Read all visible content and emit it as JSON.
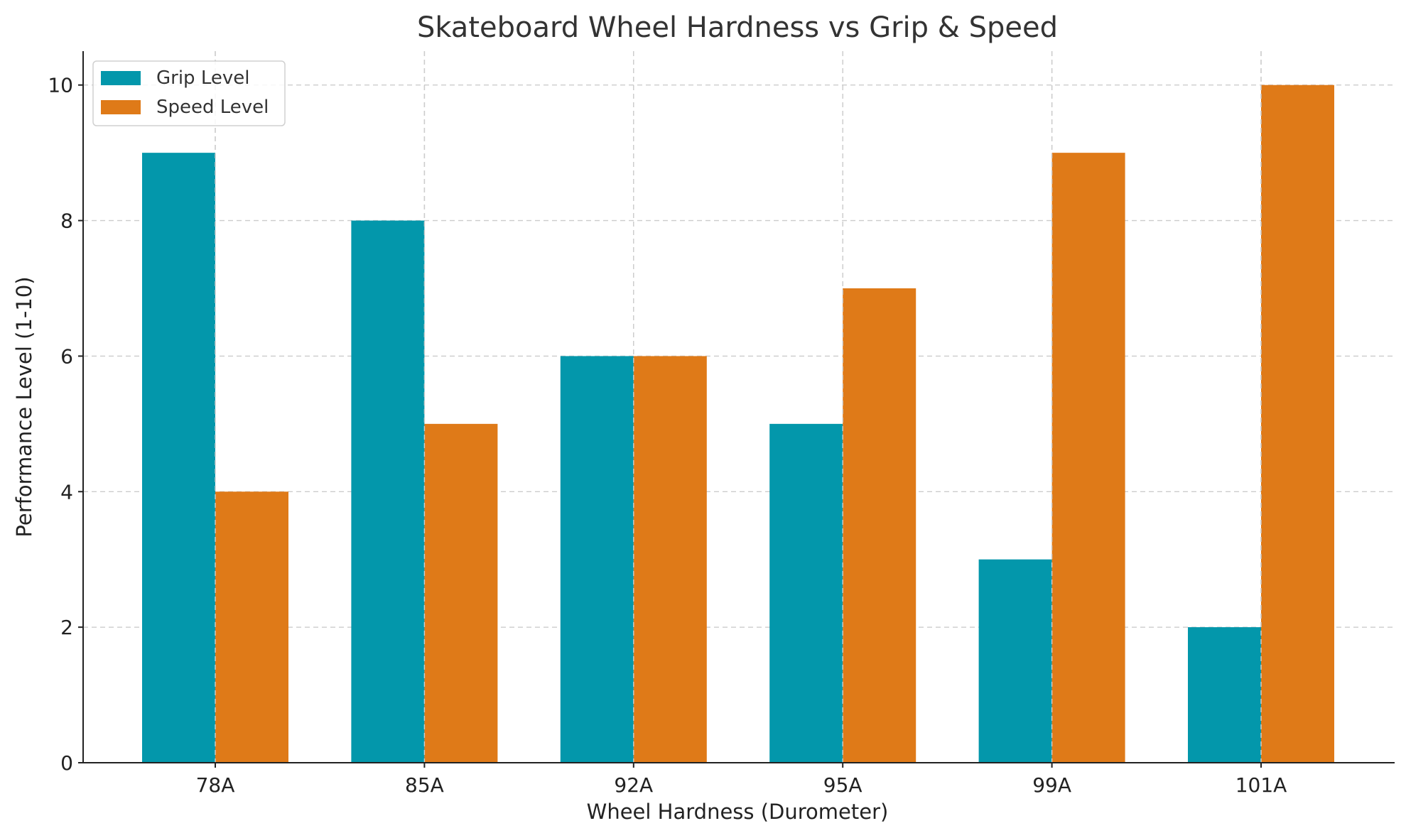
{
  "chart_data": {
    "type": "bar",
    "title": "Skateboard Wheel Hardness vs Grip & Speed",
    "xlabel": "Wheel Hardness (Durometer)",
    "ylabel": "Performance Level (1-10)",
    "categories": [
      "78A",
      "85A",
      "92A",
      "95A",
      "99A",
      "101A"
    ],
    "series": [
      {
        "name": "Grip Level",
        "color": "#0397ab",
        "values": [
          9,
          8,
          6,
          5,
          3,
          2
        ]
      },
      {
        "name": "Speed Level",
        "color": "#df7a18",
        "values": [
          4,
          5,
          6,
          7,
          9,
          10
        ]
      }
    ],
    "ylim": [
      0,
      10.5
    ],
    "yticks": [
      "0",
      "2",
      "4",
      "6",
      "8",
      "10"
    ],
    "grid": true,
    "legend_position": "top-left"
  }
}
